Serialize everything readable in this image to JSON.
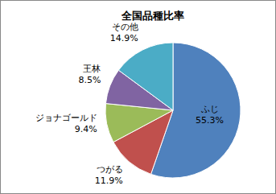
{
  "chart_data": {
    "type": "pie",
    "title": "全国品種比率",
    "categories": [
      "ふじ",
      "つがる",
      "ジョナゴールド",
      "王林",
      "その他"
    ],
    "values": [
      55.3,
      11.9,
      9.4,
      8.5,
      14.9
    ],
    "value_labels": [
      "55.3%",
      "11.9%",
      "9.4%",
      "8.5%",
      "14.9%"
    ],
    "colors": [
      "#4f81bd",
      "#c0504d",
      "#9bbb59",
      "#8064a2",
      "#4bacc6"
    ],
    "data_labels": true
  }
}
